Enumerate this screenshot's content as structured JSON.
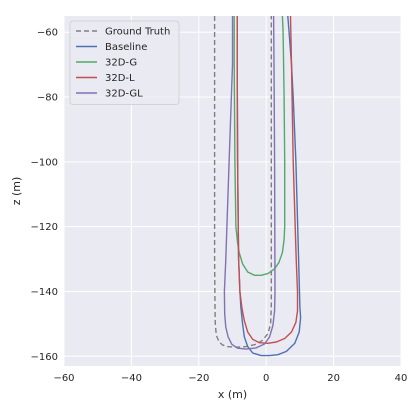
{
  "chart_data": {
    "type": "line",
    "xlabel": "x (m)",
    "ylabel": "z (m)",
    "xlim": [
      -60,
      40
    ],
    "ylim": [
      -163,
      -55
    ],
    "xticks": [
      -60,
      -40,
      -20,
      0,
      20,
      40
    ],
    "yticks": [
      -60,
      -80,
      -100,
      -120,
      -140,
      -160
    ],
    "xtick_labels": [
      "−60",
      "−40",
      "−20",
      "0",
      "20",
      "40"
    ],
    "ytick_labels": [
      "−60",
      "−80",
      "−100",
      "−120",
      "−140",
      "−160"
    ],
    "grid": true,
    "legend_position": "top-left",
    "series": [
      {
        "name": "Ground Truth",
        "color": "#7f7f7f",
        "dash": "dashed",
        "x": [
          -15.3,
          -15.3,
          -15.3,
          -15.3,
          -15.2,
          -15.1,
          -14.8,
          -14,
          -13,
          -11.5,
          -9,
          -6,
          -3,
          -1,
          0.5,
          1.3,
          1.5,
          1.5,
          1.5,
          1.5,
          1.5
        ],
        "y": [
          -55,
          -70,
          -100,
          -130,
          -145,
          -150,
          -153.5,
          -155.5,
          -156.5,
          -157,
          -157.2,
          -157,
          -156.3,
          -155,
          -153,
          -150,
          -145,
          -130,
          -100,
          -70,
          -55
        ]
      },
      {
        "name": "Baseline",
        "color": "#4c72b0",
        "dash": "solid",
        "x": [
          -8.6,
          -8.6,
          -8.5,
          -8.2,
          -7.8,
          -7.5,
          -7,
          -6.5,
          -5.5,
          -4,
          -1.5,
          1,
          3.5,
          6,
          8.5,
          9.8,
          10.2,
          10,
          9.6,
          8.8,
          8,
          7.5,
          6.8,
          6.4
        ],
        "y": [
          -55,
          -70,
          -100,
          -130,
          -140,
          -145,
          -150,
          -154,
          -157,
          -159,
          -159.8,
          -159.8,
          -159.5,
          -158.5,
          -156,
          -152.5,
          -148,
          -145,
          -130,
          -100,
          -80,
          -70,
          -60,
          -55
        ]
      },
      {
        "name": "32D-G",
        "color": "#55a868",
        "dash": "solid",
        "x": [
          -9.5,
          -9.5,
          -9.3,
          -9,
          -8.5,
          -8,
          -7,
          -5.5,
          -3.5,
          -1.5,
          0.5,
          2.5,
          3.8,
          4.8,
          5.3,
          5.5,
          5.5,
          5.3,
          5,
          4.8
        ],
        "y": [
          -55,
          -70,
          -100,
          -120,
          -125,
          -128,
          -131.5,
          -134,
          -135,
          -135,
          -134.5,
          -133,
          -131,
          -128,
          -124,
          -120,
          -100,
          -80,
          -60,
          -55
        ]
      },
      {
        "name": "32D-L",
        "color": "#c44e52",
        "dash": "solid",
        "x": [
          -8.6,
          -8.6,
          -8.5,
          -8.2,
          -7.8,
          -7.2,
          -6.5,
          -5.5,
          -4,
          -2,
          0.5,
          3,
          5.5,
          7.5,
          8.8,
          9.3,
          9.3,
          8.9,
          8,
          7.5,
          7.2
        ],
        "y": [
          -55,
          -70,
          -100,
          -130,
          -140,
          -145,
          -149,
          -152.5,
          -154.8,
          -155.8,
          -156,
          -155.6,
          -154.5,
          -152.5,
          -149.5,
          -146,
          -140,
          -130,
          -100,
          -70,
          -55
        ]
      },
      {
        "name": "32D-GL",
        "color": "#8172b2",
        "dash": "solid",
        "x": [
          -10,
          -10,
          -11,
          -12,
          -12.4,
          -12.3,
          -12,
          -11.3,
          -10.2,
          -8.5,
          -6,
          -3,
          -0.5,
          1,
          2,
          2.5,
          2.6,
          2.5,
          2.3,
          2.2
        ],
        "y": [
          -55,
          -70,
          -100,
          -130,
          -140,
          -147,
          -151,
          -154,
          -156.3,
          -157.5,
          -157.8,
          -157.4,
          -156.2,
          -154,
          -150.5,
          -146,
          -140,
          -100,
          -70,
          -55
        ]
      }
    ]
  }
}
